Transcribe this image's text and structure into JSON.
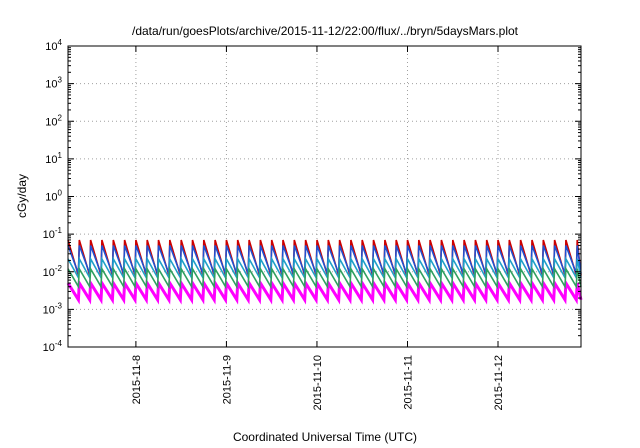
{
  "chart_data": {
    "type": "line",
    "title": "/data/run/goesPlots/archive/2015-11-12/22:00/flux/../bryn/5daysMars.plot",
    "xlabel": "Coordinated Universal Time (UTC)",
    "ylabel": "cGy/day",
    "yscale": "log",
    "ylim": [
      0.0001,
      10000
    ],
    "y_ticks": [
      {
        "value": 0.0001,
        "base": "10",
        "exp": "-4"
      },
      {
        "value": 0.001,
        "base": "10",
        "exp": "-3"
      },
      {
        "value": 0.01,
        "base": "10",
        "exp": "-2"
      },
      {
        "value": 0.1,
        "base": "10",
        "exp": "-1"
      },
      {
        "value": 1,
        "base": "10",
        "exp": "0"
      },
      {
        "value": 10,
        "base": "10",
        "exp": "1"
      },
      {
        "value": 100,
        "base": "10",
        "exp": "2"
      },
      {
        "value": 1000,
        "base": "10",
        "exp": "3"
      },
      {
        "value": 10000,
        "base": "10",
        "exp": "4"
      }
    ],
    "xlim": [
      "2015-11-07T06:00",
      "2015-11-12T22:00"
    ],
    "x_ticks": [
      "2015-11-8",
      "2015-11-9",
      "2015-11-10",
      "2015-11-11",
      "2015-11-12"
    ],
    "x_tick_dates": [
      "2015-11-08T00:00",
      "2015-11-09T00:00",
      "2015-11-10T00:00",
      "2015-11-11T00:00",
      "2015-11-12T00:00"
    ],
    "grid": true,
    "legend": false,
    "period_hours": 3,
    "series": [
      {
        "color": "#ff00ff",
        "peak": 0.005,
        "trough": 0.0018
      },
      {
        "color": "#cc0000",
        "peak": 0.07,
        "trough": 0.008
      },
      {
        "color": "#2050d0",
        "peak": 0.05,
        "trough": 0.009
      },
      {
        "color": "#20a0c8",
        "peak": 0.022,
        "trough": 0.007
      },
      {
        "color": "#30a060",
        "peak": 0.012,
        "trough": 0.004
      }
    ]
  }
}
